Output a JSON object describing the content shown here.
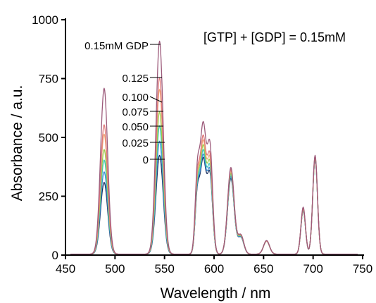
{
  "chart_data": {
    "type": "line",
    "xlabel": "Wavelength / nm",
    "ylabel": "Absorbance / a.u.",
    "xlim": [
      450,
      750
    ],
    "ylim": [
      0,
      1000
    ],
    "x_ticks": [
      "450",
      "500",
      "550",
      "600",
      "650",
      "700",
      "750"
    ],
    "y_ticks": [
      "0",
      "250",
      "500",
      "750",
      "1000"
    ],
    "grid": false,
    "legend": "none",
    "annotation": "[GTP] + [GDP] = 0.15mM",
    "series_labels": [
      "0.15mM GDP",
      "0.125",
      "0.100",
      "0.075",
      "0.050",
      "0.025",
      "0"
    ],
    "peaks_nm": [
      489,
      545,
      589,
      617,
      653,
      690,
      702
    ],
    "series": [
      {
        "label_index": 0,
        "color": "#9c5a7a",
        "values": [
          705,
          905,
          545,
          368,
          58,
          200,
          420
        ]
      },
      {
        "label_index": 1,
        "color": "#e07a7a",
        "values": [
          550,
          750,
          490,
          360,
          56,
          195,
          415
        ]
      },
      {
        "label_index": 2,
        "color": "#f0a878",
        "values": [
          510,
          700,
          470,
          355,
          56,
          192,
          412
        ]
      },
      {
        "label_index": 3,
        "color": "#9ccc4a",
        "values": [
          445,
          605,
          450,
          345,
          55,
          190,
          410
        ]
      },
      {
        "label_index": 4,
        "color": "#3cc8b8",
        "values": [
          400,
          545,
          430,
          338,
          55,
          188,
          408
        ]
      },
      {
        "label_index": 5,
        "color": "#3a8fd4",
        "values": [
          350,
          480,
          412,
          330,
          55,
          186,
          406
        ]
      },
      {
        "label_index": 6,
        "color": "#1a3060",
        "values": [
          305,
          420,
          398,
          322,
          55,
          185,
          405
        ]
      }
    ]
  }
}
